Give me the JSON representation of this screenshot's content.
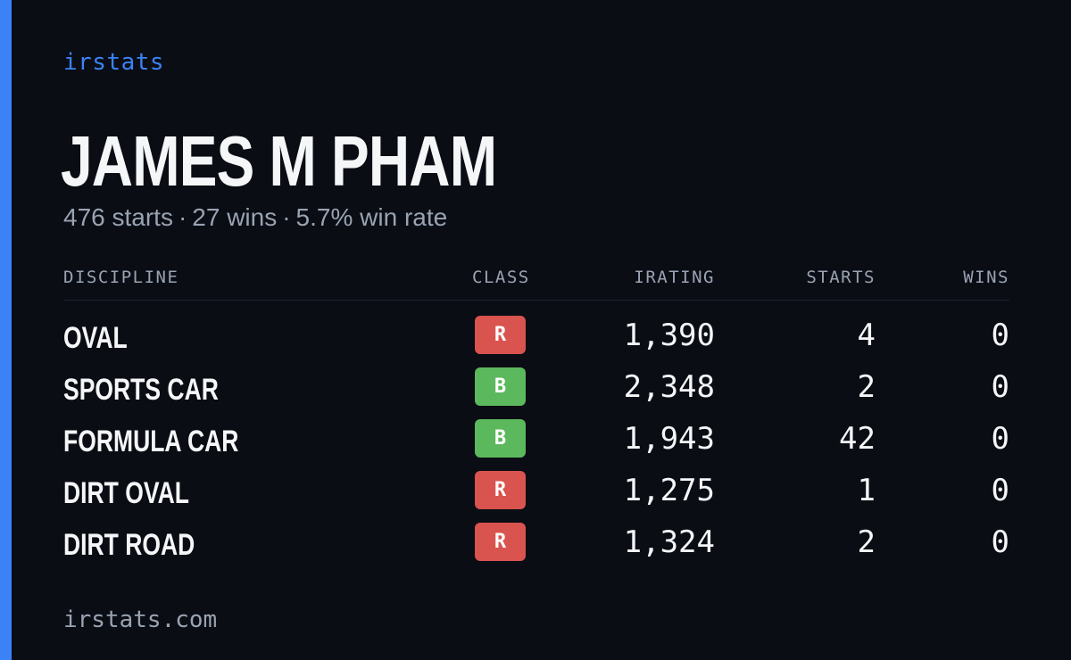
{
  "brand": "irstats",
  "driver": {
    "name": "JAMES M PHAM",
    "starts": "476 starts",
    "wins": "27 wins",
    "win_rate": "5.7% win rate",
    "separator": "·"
  },
  "table": {
    "headers": {
      "discipline": "DISCIPLINE",
      "class": "CLASS",
      "irating": "IRATING",
      "starts": "STARTS",
      "wins": "WINS"
    },
    "rows": [
      {
        "discipline": "OVAL",
        "class": "R",
        "irating": "1,390",
        "starts": "4",
        "wins": "0"
      },
      {
        "discipline": "SPORTS CAR",
        "class": "B",
        "irating": "2,348",
        "starts": "2",
        "wins": "0"
      },
      {
        "discipline": "FORMULA CAR",
        "class": "B",
        "irating": "1,943",
        "starts": "42",
        "wins": "0"
      },
      {
        "discipline": "DIRT OVAL",
        "class": "R",
        "irating": "1,275",
        "starts": "1",
        "wins": "0"
      },
      {
        "discipline": "DIRT ROAD",
        "class": "R",
        "irating": "1,324",
        "starts": "2",
        "wins": "0"
      }
    ]
  },
  "footer": "irstats.com",
  "colors": {
    "background": "#0a0d14",
    "accent": "#3b82f6",
    "class_R": "#d9534f",
    "class_B": "#5cb85c",
    "text_primary": "#f5f6f8",
    "text_muted": "#9aa3b2"
  }
}
